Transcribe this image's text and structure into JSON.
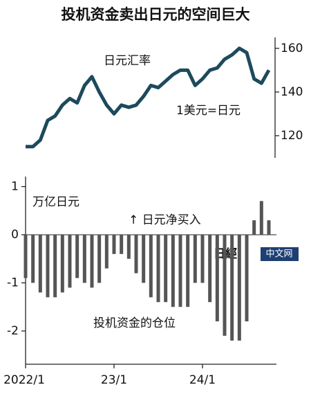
{
  "title": "投机资金卖出日元的空间巨大",
  "watermark": [
    "日經",
    "中文网"
  ],
  "chart_data": [
    {
      "type": "line",
      "label": "日元汇率",
      "annotation": "1美元=日元",
      "color": "#1d4a5c",
      "x": [
        "2022/1",
        "2022/2",
        "2022/3",
        "2022/4",
        "2022/5",
        "2022/6",
        "2022/7",
        "2022/8",
        "2022/9",
        "2022/10",
        "2022/11",
        "2022/12",
        "2023/1",
        "2023/2",
        "2023/3",
        "2023/4",
        "2023/5",
        "2023/6",
        "2023/7",
        "2023/8",
        "2023/9",
        "2023/10",
        "2023/11",
        "2023/12",
        "2024/1",
        "2024/2",
        "2024/3",
        "2024/4",
        "2024/5",
        "2024/6",
        "2024/7",
        "2024/8",
        "2024/9",
        "2024/10"
      ],
      "values": [
        115,
        115,
        118,
        127,
        129,
        134,
        137,
        135,
        143,
        147,
        140,
        134,
        130,
        134,
        133,
        134,
        138,
        143,
        142,
        145,
        148,
        150,
        150,
        143,
        146,
        150,
        151,
        155,
        157,
        160,
        158,
        146,
        144,
        150
      ],
      "ylim": [
        110,
        165
      ],
      "yticks": [
        120,
        140,
        160
      ]
    },
    {
      "type": "bar",
      "label": "投机资金的仓位",
      "unit": "万亿日元",
      "annotation": "↑ 日元净买入",
      "color": "#555555",
      "categories": [
        "2022/1",
        "2022/2",
        "2022/3",
        "2022/4",
        "2022/5",
        "2022/6",
        "2022/7",
        "2022/8",
        "2022/9",
        "2022/10",
        "2022/11",
        "2022/12",
        "2023/1",
        "2023/2",
        "2023/3",
        "2023/4",
        "2023/5",
        "2023/6",
        "2023/7",
        "2023/8",
        "2023/9",
        "2023/10",
        "2023/11",
        "2023/12",
        "2024/1",
        "2024/2",
        "2024/3",
        "2024/4",
        "2024/5",
        "2024/6",
        "2024/7",
        "2024/8",
        "2024/9",
        "2024/10"
      ],
      "values": [
        -0.9,
        -1.0,
        -1.2,
        -1.3,
        -1.3,
        -1.2,
        -1.1,
        -0.9,
        -1.0,
        -1.1,
        -1.0,
        -0.7,
        -0.4,
        -0.4,
        -0.5,
        -0.8,
        -1.0,
        -1.3,
        -1.4,
        -1.4,
        -1.5,
        -1.5,
        -1.5,
        -1.0,
        -1.0,
        -1.4,
        -1.8,
        -2.1,
        -2.2,
        -2.2,
        -1.8,
        0.3,
        0.7,
        0.3
      ],
      "ylim": [
        -2.7,
        1.2
      ],
      "yticks": [
        1,
        0,
        -1,
        -2
      ],
      "xticks": [
        {
          "value": "2022/1",
          "label": "2022/1"
        },
        {
          "value": "2023/1",
          "label": "23/1"
        },
        {
          "value": "2024/1",
          "label": "24/1"
        }
      ]
    }
  ]
}
